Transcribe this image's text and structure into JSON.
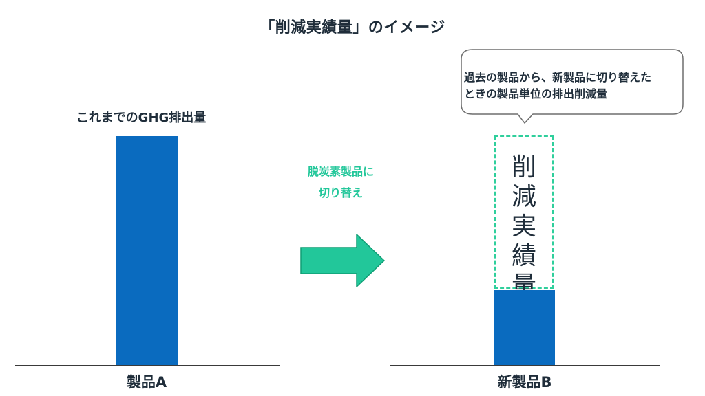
{
  "title": "「削減実績量」のイメージ",
  "left": {
    "caption": "これまでのGHG排出量",
    "label": "製品A"
  },
  "arrow": {
    "line1": "脱炭素製品に",
    "line2": "切り替え"
  },
  "right": {
    "callout_line1": "過去の製品から、新製品に切り替えた",
    "callout_line2": "ときの製品単位の排出削減量",
    "reduction_chars": [
      "削",
      "減",
      "実",
      "績",
      "量"
    ],
    "label": "新製品B"
  },
  "colors": {
    "bar": "#0a6bbf",
    "accent": "#22c79a",
    "dashed": "#2fcf9c",
    "text": "#1f2d3a"
  }
}
